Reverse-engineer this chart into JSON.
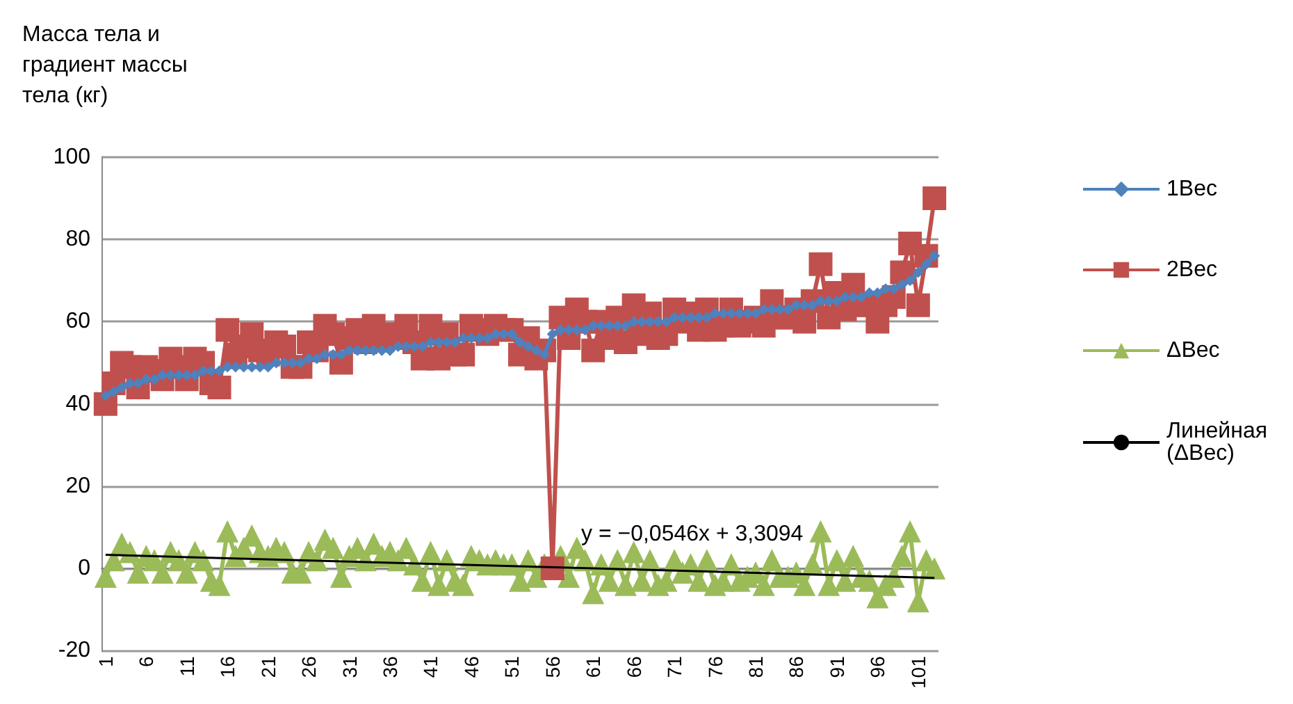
{
  "chart_data": {
    "type": "line",
    "ylabel": "Масса тела и градиент массы тела (кг)",
    "categories": [
      "1",
      null,
      null,
      null,
      null,
      "6",
      null,
      null,
      null,
      null,
      "11",
      null,
      null,
      null,
      null,
      "16",
      null,
      null,
      null,
      null,
      "21",
      null,
      null,
      null,
      null,
      "26",
      null,
      null,
      null,
      null,
      "31",
      null,
      null,
      null,
      null,
      "36",
      null,
      null,
      null,
      null,
      "41",
      null,
      null,
      null,
      null,
      "46",
      null,
      null,
      null,
      null,
      "51",
      null,
      null,
      null,
      null,
      "56",
      null,
      null,
      null,
      null,
      "61",
      null,
      null,
      null,
      null,
      "66",
      null,
      null,
      null,
      null,
      "71",
      null,
      null,
      null,
      null,
      "76",
      null,
      null,
      null,
      null,
      "81",
      null,
      null,
      null,
      null,
      "86",
      null,
      null,
      null,
      null,
      "91",
      null,
      null,
      null,
      null,
      "96",
      null,
      null,
      null,
      null,
      "101",
      null,
      null
    ],
    "series": [
      {
        "name": "1Вес",
        "color": "#4f81bd",
        "marker": "diamond",
        "values": [
          42,
          43,
          44,
          45,
          45,
          46,
          46,
          47,
          47,
          47,
          47,
          47,
          48,
          48,
          48,
          49,
          49,
          49,
          49,
          49,
          49,
          50,
          50,
          50,
          50,
          51,
          51,
          52,
          52,
          52,
          53,
          53,
          53,
          53,
          53,
          53,
          54,
          54,
          54,
          54,
          55,
          55,
          55,
          55,
          56,
          56,
          56,
          56,
          57,
          57,
          57,
          55,
          54,
          53,
          52,
          57,
          58,
          58,
          58,
          58,
          59,
          59,
          59,
          59,
          59,
          60,
          60,
          60,
          60,
          60,
          61,
          61,
          61,
          61,
          61,
          62,
          62,
          62,
          62,
          62,
          62,
          63,
          63,
          63,
          63,
          64,
          64,
          64,
          65,
          65,
          65,
          66,
          66,
          66,
          67,
          67,
          68,
          68,
          69,
          70,
          72,
          74,
          76
        ]
      },
      {
        "name": "2Вес",
        "color": "#c0504d",
        "marker": "square",
        "values": [
          40,
          45,
          50,
          49,
          44,
          49,
          48,
          46,
          51,
          49,
          46,
          51,
          50,
          45,
          44,
          58,
          52,
          54,
          57,
          53,
          52,
          55,
          54,
          49,
          49,
          55,
          53,
          59,
          57,
          50,
          56,
          58,
          55,
          59,
          56,
          57,
          56,
          59,
          55,
          51,
          59,
          51,
          57,
          52,
          52,
          59,
          58,
          57,
          59,
          58,
          58,
          52,
          56,
          51,
          53,
          0,
          61,
          56,
          63,
          60,
          53,
          60,
          56,
          61,
          55,
          64,
          57,
          62,
          56,
          57,
          63,
          60,
          62,
          58,
          63,
          58,
          59,
          63,
          59,
          60,
          61,
          59,
          65,
          61,
          61,
          63,
          60,
          65,
          74,
          61,
          67,
          63,
          69,
          64,
          64,
          60,
          64,
          66,
          72,
          79,
          64,
          76,
          90
        ]
      },
      {
        "name": "ΔВес",
        "color": "#9bbb59",
        "marker": "triangle",
        "values": [
          -2,
          2,
          6,
          4,
          -1,
          3,
          2,
          -1,
          4,
          2,
          -1,
          4,
          2,
          -3,
          -4,
          9,
          3,
          5,
          8,
          4,
          3,
          5,
          4,
          -1,
          -1,
          4,
          2,
          7,
          5,
          -2,
          3,
          5,
          2,
          6,
          3,
          4,
          2,
          5,
          1,
          -3,
          4,
          -4,
          2,
          -3,
          -4,
          3,
          2,
          1,
          2,
          1,
          1,
          -3,
          2,
          -2,
          1,
          null,
          3,
          -2,
          5,
          2,
          -6,
          1,
          -3,
          2,
          -4,
          4,
          -3,
          2,
          -4,
          -3,
          2,
          -1,
          1,
          -3,
          2,
          -4,
          -3,
          1,
          -3,
          -2,
          -1,
          -4,
          2,
          -2,
          -2,
          -1,
          -4,
          1,
          9,
          -4,
          2,
          -3,
          3,
          -2,
          -3,
          -7,
          -4,
          -2,
          3,
          9,
          -8,
          2,
          0
        ]
      },
      {
        "name": "Линейная (ΔВес)",
        "color": "#000000",
        "marker": "none",
        "values": [
          3.3,
          null,
          null,
          null,
          null,
          null,
          null,
          null,
          null,
          null,
          null,
          null,
          null,
          null,
          null,
          null,
          null,
          null,
          null,
          null,
          null,
          null,
          null,
          null,
          null,
          null,
          null,
          null,
          null,
          null,
          null,
          null,
          null,
          null,
          null,
          null,
          null,
          null,
          null,
          null,
          null,
          null,
          null,
          null,
          null,
          null,
          null,
          null,
          null,
          null,
          null,
          null,
          null,
          null,
          null,
          null,
          null,
          null,
          null,
          null,
          null,
          null,
          null,
          null,
          null,
          null,
          null,
          null,
          null,
          null,
          null,
          null,
          null,
          null,
          null,
          null,
          null,
          null,
          null,
          null,
          null,
          null,
          null,
          null,
          null,
          null,
          null,
          null,
          null,
          null,
          null,
          null,
          null,
          null,
          null,
          null,
          null,
          null,
          null,
          null,
          null,
          null,
          -2.3
        ]
      }
    ],
    "ylim": [
      -20,
      100
    ],
    "yticks": [
      -20,
      0,
      20,
      40,
      60,
      80,
      100
    ],
    "grid": "y",
    "legend": "right",
    "annotations": [
      "y = −0,0546x + 3,3094"
    ]
  }
}
